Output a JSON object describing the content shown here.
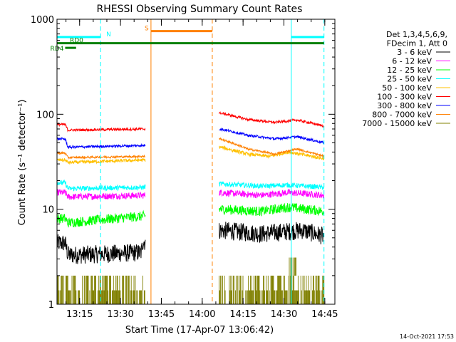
{
  "chart_data": {
    "type": "line",
    "title": "RHESSI Observing Summary Count Rates",
    "xlabel": "Start Time (17-Apr-07 13:06:42)",
    "ylabel": "Count Rate (s⁻¹ detector⁻¹)",
    "x_unit": "minutes after 13:06:42",
    "xlim": [
      0,
      102
    ],
    "ylim": [
      1,
      1000
    ],
    "y_scale": "log",
    "x_ticks": [
      {
        "at": 8.3,
        "label": "13:15"
      },
      {
        "at": 23.3,
        "label": "13:30"
      },
      {
        "at": 38.3,
        "label": "13:45"
      },
      {
        "at": 53.3,
        "label": "14:00"
      },
      {
        "at": 68.3,
        "label": "14:15"
      },
      {
        "at": 83.3,
        "label": "14:30"
      },
      {
        "at": 98.3,
        "label": "14:45"
      }
    ],
    "y_ticks": [
      {
        "at": 1,
        "label": "1"
      },
      {
        "at": 10,
        "label": "10"
      },
      {
        "at": 100,
        "label": "100"
      },
      {
        "at": 1000,
        "label": "1000"
      }
    ],
    "legend_header": [
      "Det 1,3,4,5,6,9,",
      "FDecim 1, Att 0"
    ],
    "legend_position": "right",
    "gaps": [
      [
        32.5,
        59.5
      ]
    ],
    "series": [
      {
        "name": "3 - 6 keV",
        "color": "#000000",
        "noise": 0.22,
        "points": [
          [
            0,
            4.4
          ],
          [
            3,
            4.4
          ],
          [
            4,
            3.3
          ],
          [
            7,
            3.3
          ],
          [
            8,
            3.3
          ],
          [
            31,
            3.5
          ],
          [
            31.5,
            4.6
          ],
          [
            32.5,
            4.5
          ],
          [
            60,
            6.0
          ],
          [
            75,
            5.5
          ],
          [
            90,
            6.0
          ],
          [
            98,
            5.2
          ]
        ]
      },
      {
        "name": "6 - 12 keV",
        "color": "#ff00ff",
        "noise": 0.08,
        "points": [
          [
            0,
            15
          ],
          [
            3,
            15
          ],
          [
            4,
            13.5
          ],
          [
            32.5,
            14
          ],
          [
            60,
            15
          ],
          [
            75,
            14
          ],
          [
            85,
            15
          ],
          [
            98,
            14
          ]
        ]
      },
      {
        "name": "12 - 25 keV",
        "color": "#00ff00",
        "noise": 0.12,
        "points": [
          [
            0,
            8
          ],
          [
            3,
            8
          ],
          [
            4,
            7.2
          ],
          [
            32.5,
            8.5
          ],
          [
            60,
            10
          ],
          [
            75,
            9.5
          ],
          [
            85,
            10.5
          ],
          [
            98,
            9.5
          ]
        ]
      },
      {
        "name": "25 - 50 keV",
        "color": "#00ffff",
        "noise": 0.06,
        "points": [
          [
            0,
            19
          ],
          [
            3,
            19
          ],
          [
            4,
            16.5
          ],
          [
            32,
            17
          ],
          [
            32.5,
            17.5
          ],
          [
            60,
            18.5
          ],
          [
            75,
            17.5
          ],
          [
            85,
            18
          ],
          [
            98,
            17
          ]
        ]
      },
      {
        "name": "50 - 100 keV",
        "color": "#ffc000",
        "noise": 0.04,
        "points": [
          [
            0,
            33
          ],
          [
            3,
            33
          ],
          [
            4,
            31
          ],
          [
            32.5,
            33
          ],
          [
            60,
            45
          ],
          [
            70,
            38
          ],
          [
            78,
            36
          ],
          [
            85,
            40
          ],
          [
            98,
            34
          ]
        ]
      },
      {
        "name": "100 - 300 keV",
        "color": "#ff0000",
        "noise": 0.03,
        "points": [
          [
            0,
            78
          ],
          [
            3,
            78
          ],
          [
            4,
            68
          ],
          [
            32.5,
            70
          ],
          [
            60,
            103
          ],
          [
            70,
            88
          ],
          [
            80,
            82
          ],
          [
            88,
            87
          ],
          [
            98,
            75
          ]
        ]
      },
      {
        "name": "300 - 800 keV",
        "color": "#0000ff",
        "noise": 0.03,
        "points": [
          [
            0,
            55
          ],
          [
            3,
            55
          ],
          [
            4,
            45
          ],
          [
            32.5,
            47
          ],
          [
            60,
            70
          ],
          [
            70,
            60
          ],
          [
            80,
            55
          ],
          [
            88,
            58
          ],
          [
            98,
            50
          ]
        ]
      },
      {
        "name": "800 - 7000 keV",
        "color": "#ff8000",
        "noise": 0.025,
        "points": [
          [
            0,
            39
          ],
          [
            3,
            39
          ],
          [
            4,
            35
          ],
          [
            32.5,
            36
          ],
          [
            60,
            55
          ],
          [
            70,
            43
          ],
          [
            80,
            38
          ],
          [
            88,
            43
          ],
          [
            98,
            36
          ]
        ]
      },
      {
        "name": "7000 - 15000 keV",
        "color": "#808000",
        "noise": 0.0,
        "points": [
          [
            0,
            2
          ],
          [
            32.5,
            2
          ],
          [
            60,
            2
          ],
          [
            98,
            2
          ]
        ]
      }
    ],
    "markers": [
      {
        "type": "night",
        "label": "N",
        "color": "#00ffff",
        "y": 650,
        "segments": [
          [
            0,
            16
          ]
        ],
        "dash_at": [
          16
        ]
      },
      {
        "type": "night",
        "label": "",
        "color": "#00ffff",
        "y": 650,
        "segments": [
          [
            86,
            98
          ]
        ],
        "dash_at": [
          98
        ]
      },
      {
        "type": "saa",
        "label": "S",
        "color": "#ff8000",
        "y": 750,
        "segments": [
          [
            34.5,
            57
          ]
        ],
        "dash_at": [
          57
        ]
      },
      {
        "type": "rd",
        "label": "RD0",
        "color": "#008000",
        "y": 560,
        "segments": [
          [
            0,
            98
          ]
        ],
        "dash_at": []
      },
      {
        "type": "rd",
        "label": "RD4",
        "color": "#008000",
        "y": 500,
        "segments": [
          [
            3,
            7
          ]
        ],
        "dash_at": []
      }
    ],
    "vlines_solid": [
      {
        "x": 0,
        "color": "#00ffff"
      },
      {
        "x": 34.5,
        "color": "#ff8000"
      },
      {
        "x": 86,
        "color": "#00ffff"
      }
    ],
    "grid": false
  },
  "footer_date": "14-Oct-2021 17:53"
}
